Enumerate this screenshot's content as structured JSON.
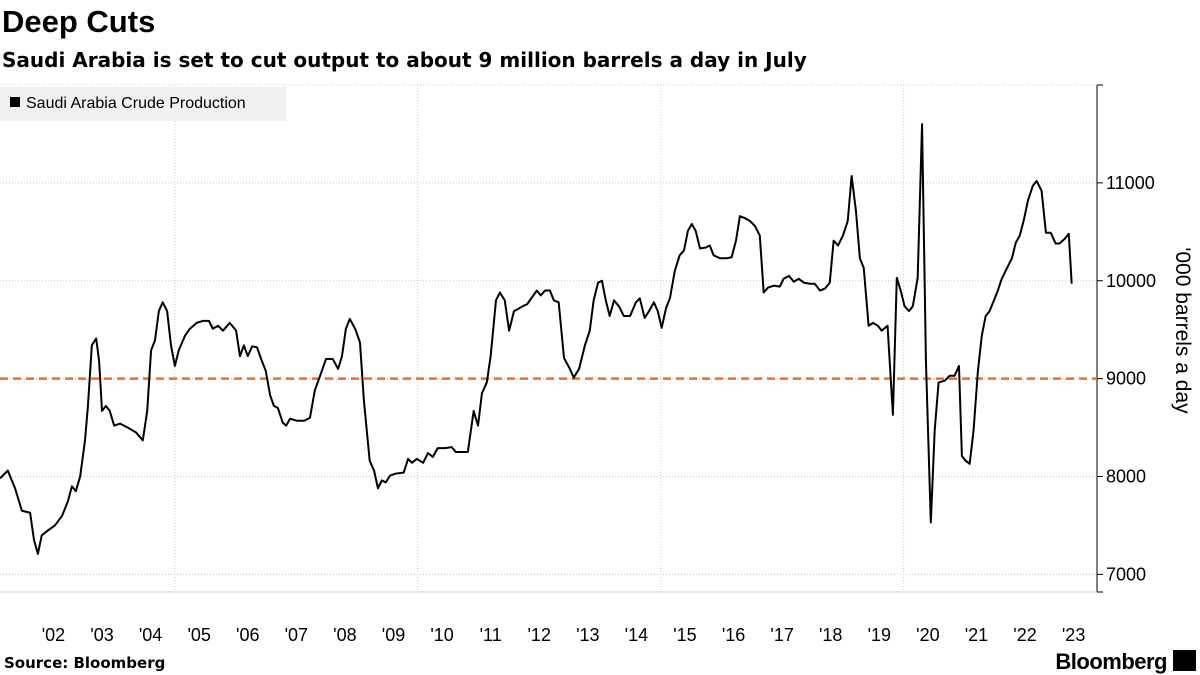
{
  "chart_data": {
    "type": "line",
    "title": "Deep Cuts",
    "subtitle": "Saudi Arabia is set to cut output to about 9 million barrels a day in July",
    "y_axis_label": "'000 barrels a day",
    "source": "Source: Bloomberg",
    "brand": "Bloomberg",
    "legend_position": "top-left",
    "grid": true,
    "xlim": [
      2001.4,
      2023.94
    ],
    "ylim": [
      6820,
      12000
    ],
    "yticks": [
      7000,
      8000,
      9000,
      10000,
      11000
    ],
    "xticks": [
      {
        "value": 2002.5,
        "label": "'02"
      },
      {
        "value": 2003.5,
        "label": "'03"
      },
      {
        "value": 2004.5,
        "label": "'04"
      },
      {
        "value": 2005.5,
        "label": "'05"
      },
      {
        "value": 2006.5,
        "label": "'06"
      },
      {
        "value": 2007.5,
        "label": "'07"
      },
      {
        "value": 2008.5,
        "label": "'08"
      },
      {
        "value": 2009.5,
        "label": "'09"
      },
      {
        "value": 2010.5,
        "label": "'10"
      },
      {
        "value": 2011.5,
        "label": "'11"
      },
      {
        "value": 2012.5,
        "label": "'12"
      },
      {
        "value": 2013.5,
        "label": "'13"
      },
      {
        "value": 2014.5,
        "label": "'14"
      },
      {
        "value": 2015.5,
        "label": "'15"
      },
      {
        "value": 2016.5,
        "label": "'16"
      },
      {
        "value": 2017.5,
        "label": "'17"
      },
      {
        "value": 2018.5,
        "label": "'18"
      },
      {
        "value": 2019.5,
        "label": "'19"
      },
      {
        "value": 2020.5,
        "label": "'20"
      },
      {
        "value": 2021.5,
        "label": "'21"
      },
      {
        "value": 2022.5,
        "label": "'22"
      },
      {
        "value": 2023.5,
        "label": "'23"
      }
    ],
    "xgrid": [
      2005,
      2010,
      2015,
      2020
    ],
    "reference_line": {
      "value": 9000,
      "color": "#e8702a"
    },
    "x": [
      2001.4,
      2001.56,
      2001.71,
      2001.85,
      2002.02,
      2002.1,
      2002.18,
      2002.26,
      2002.39,
      2002.53,
      2002.68,
      2002.8,
      2002.88,
      2002.96,
      2003.05,
      2003.15,
      2003.21,
      2003.29,
      2003.38,
      2003.44,
      2003.5,
      2003.58,
      2003.66,
      2003.75,
      2003.87,
      2004.03,
      2004.2,
      2004.34,
      2004.43,
      2004.51,
      2004.59,
      2004.67,
      2004.75,
      2004.84,
      2004.92,
      2005.0,
      2005.08,
      2005.21,
      2005.31,
      2005.45,
      2005.58,
      2005.7,
      2005.78,
      2005.89,
      2005.99,
      2006.13,
      2006.26,
      2006.34,
      2006.42,
      2006.5,
      2006.59,
      2006.69,
      2006.79,
      2006.87,
      2006.96,
      2007.04,
      2007.12,
      2007.22,
      2007.29,
      2007.37,
      2007.51,
      2007.66,
      2007.78,
      2007.88,
      2007.99,
      2008.11,
      2008.25,
      2008.36,
      2008.44,
      2008.52,
      2008.6,
      2008.71,
      2008.81,
      2008.89,
      2009.01,
      2009.1,
      2009.18,
      2009.26,
      2009.34,
      2009.43,
      2009.55,
      2009.71,
      2009.8,
      2009.88,
      2009.98,
      2010.11,
      2010.21,
      2010.31,
      2010.41,
      2010.56,
      2010.7,
      2010.78,
      2010.91,
      2011.03,
      2011.15,
      2011.24,
      2011.32,
      2011.42,
      2011.5,
      2011.61,
      2011.69,
      2011.79,
      2011.88,
      2011.98,
      2012.06,
      2012.16,
      2012.25,
      2012.35,
      2012.45,
      2012.53,
      2012.62,
      2012.72,
      2012.8,
      2012.9,
      2013.01,
      2013.13,
      2013.21,
      2013.32,
      2013.44,
      2013.54,
      2013.62,
      2013.71,
      2013.79,
      2013.87,
      2013.95,
      2014.04,
      2014.14,
      2014.24,
      2014.37,
      2014.49,
      2014.57,
      2014.67,
      2014.76,
      2014.86,
      2014.94,
      2015.02,
      2015.11,
      2015.19,
      2015.29,
      2015.39,
      2015.48,
      2015.56,
      2015.64,
      2015.72,
      2015.81,
      2015.93,
      2016.01,
      2016.09,
      2016.22,
      2016.36,
      2016.46,
      2016.55,
      2016.63,
      2016.73,
      2016.84,
      2016.94,
      2017.04,
      2017.12,
      2017.21,
      2017.33,
      2017.45,
      2017.53,
      2017.64,
      2017.74,
      2017.84,
      2017.95,
      2018.07,
      2018.17,
      2018.28,
      2018.38,
      2018.48,
      2018.56,
      2018.65,
      2018.75,
      2018.85,
      2018.93,
      2019.02,
      2019.1,
      2019.18,
      2019.28,
      2019.37,
      2019.47,
      2019.55,
      2019.67,
      2019.78,
      2019.86,
      2019.94,
      2020.02,
      2020.11,
      2020.19,
      2020.29,
      2020.38,
      2020.46,
      2020.56,
      2020.64,
      2020.72,
      2020.85,
      2020.95,
      2021.05,
      2021.14,
      2021.2,
      2021.28,
      2021.36,
      2021.44,
      2021.53,
      2021.61,
      2021.69,
      2021.77,
      2021.86,
      2021.94,
      2022.02,
      2022.1,
      2022.23,
      2022.31,
      2022.39,
      2022.47,
      2022.56,
      2022.66,
      2022.74,
      2022.84,
      2022.93,
      2023.03,
      2023.13,
      2023.21,
      2023.32,
      2023.4,
      2023.46
    ],
    "series": [
      {
        "name": "Saudi Arabia Crude Production",
        "color": "#000000",
        "values": [
          7980,
          8060,
          7880,
          7650,
          7630,
          7350,
          7210,
          7400,
          7450,
          7500,
          7600,
          7750,
          7900,
          7850,
          8000,
          8370,
          8720,
          9340,
          9410,
          9180,
          8670,
          8720,
          8670,
          8520,
          8540,
          8500,
          8450,
          8370,
          8670,
          9290,
          9390,
          9690,
          9780,
          9690,
          9340,
          9130,
          9290,
          9440,
          9510,
          9570,
          9590,
          9590,
          9510,
          9540,
          9490,
          9570,
          9490,
          9230,
          9340,
          9230,
          9330,
          9320,
          9180,
          9080,
          8830,
          8720,
          8700,
          8550,
          8520,
          8590,
          8570,
          8570,
          8600,
          8880,
          9030,
          9200,
          9200,
          9100,
          9230,
          9510,
          9610,
          9510,
          9370,
          8780,
          8160,
          8060,
          7880,
          7960,
          7940,
          8010,
          8030,
          8040,
          8180,
          8140,
          8180,
          8140,
          8240,
          8200,
          8290,
          8290,
          8300,
          8250,
          8250,
          8250,
          8670,
          8520,
          8850,
          8960,
          9230,
          9800,
          9880,
          9800,
          9490,
          9690,
          9710,
          9740,
          9760,
          9830,
          9900,
          9850,
          9900,
          9900,
          9800,
          9780,
          9210,
          9100,
          9010,
          9100,
          9340,
          9490,
          9800,
          9980,
          10000,
          9800,
          9640,
          9800,
          9740,
          9640,
          9640,
          9780,
          9820,
          9620,
          9690,
          9780,
          9690,
          9520,
          9720,
          9820,
          10100,
          10260,
          10310,
          10510,
          10580,
          10510,
          10330,
          10340,
          10360,
          10260,
          10230,
          10230,
          10240,
          10410,
          10660,
          10640,
          10610,
          10560,
          10460,
          9880,
          9930,
          9950,
          9940,
          10020,
          10050,
          9990,
          10020,
          9980,
          9970,
          9970,
          9900,
          9920,
          9980,
          10410,
          10360,
          10460,
          10610,
          11070,
          10710,
          10230,
          10130,
          9540,
          9570,
          9540,
          9490,
          9540,
          8630,
          10030,
          9900,
          9740,
          9690,
          9740,
          10030,
          11600,
          9180,
          7530,
          8470,
          8960,
          8980,
          9030,
          9030,
          9130,
          8210,
          8160,
          8130,
          8470,
          9080,
          9440,
          9640,
          9690,
          9800,
          9900,
          10020,
          10100,
          10230,
          10390,
          10460,
          10610,
          10820,
          10970,
          11020,
          10920,
          10490,
          10490,
          10380,
          10380,
          10430,
          10480,
          9970
        ]
      }
    ]
  }
}
